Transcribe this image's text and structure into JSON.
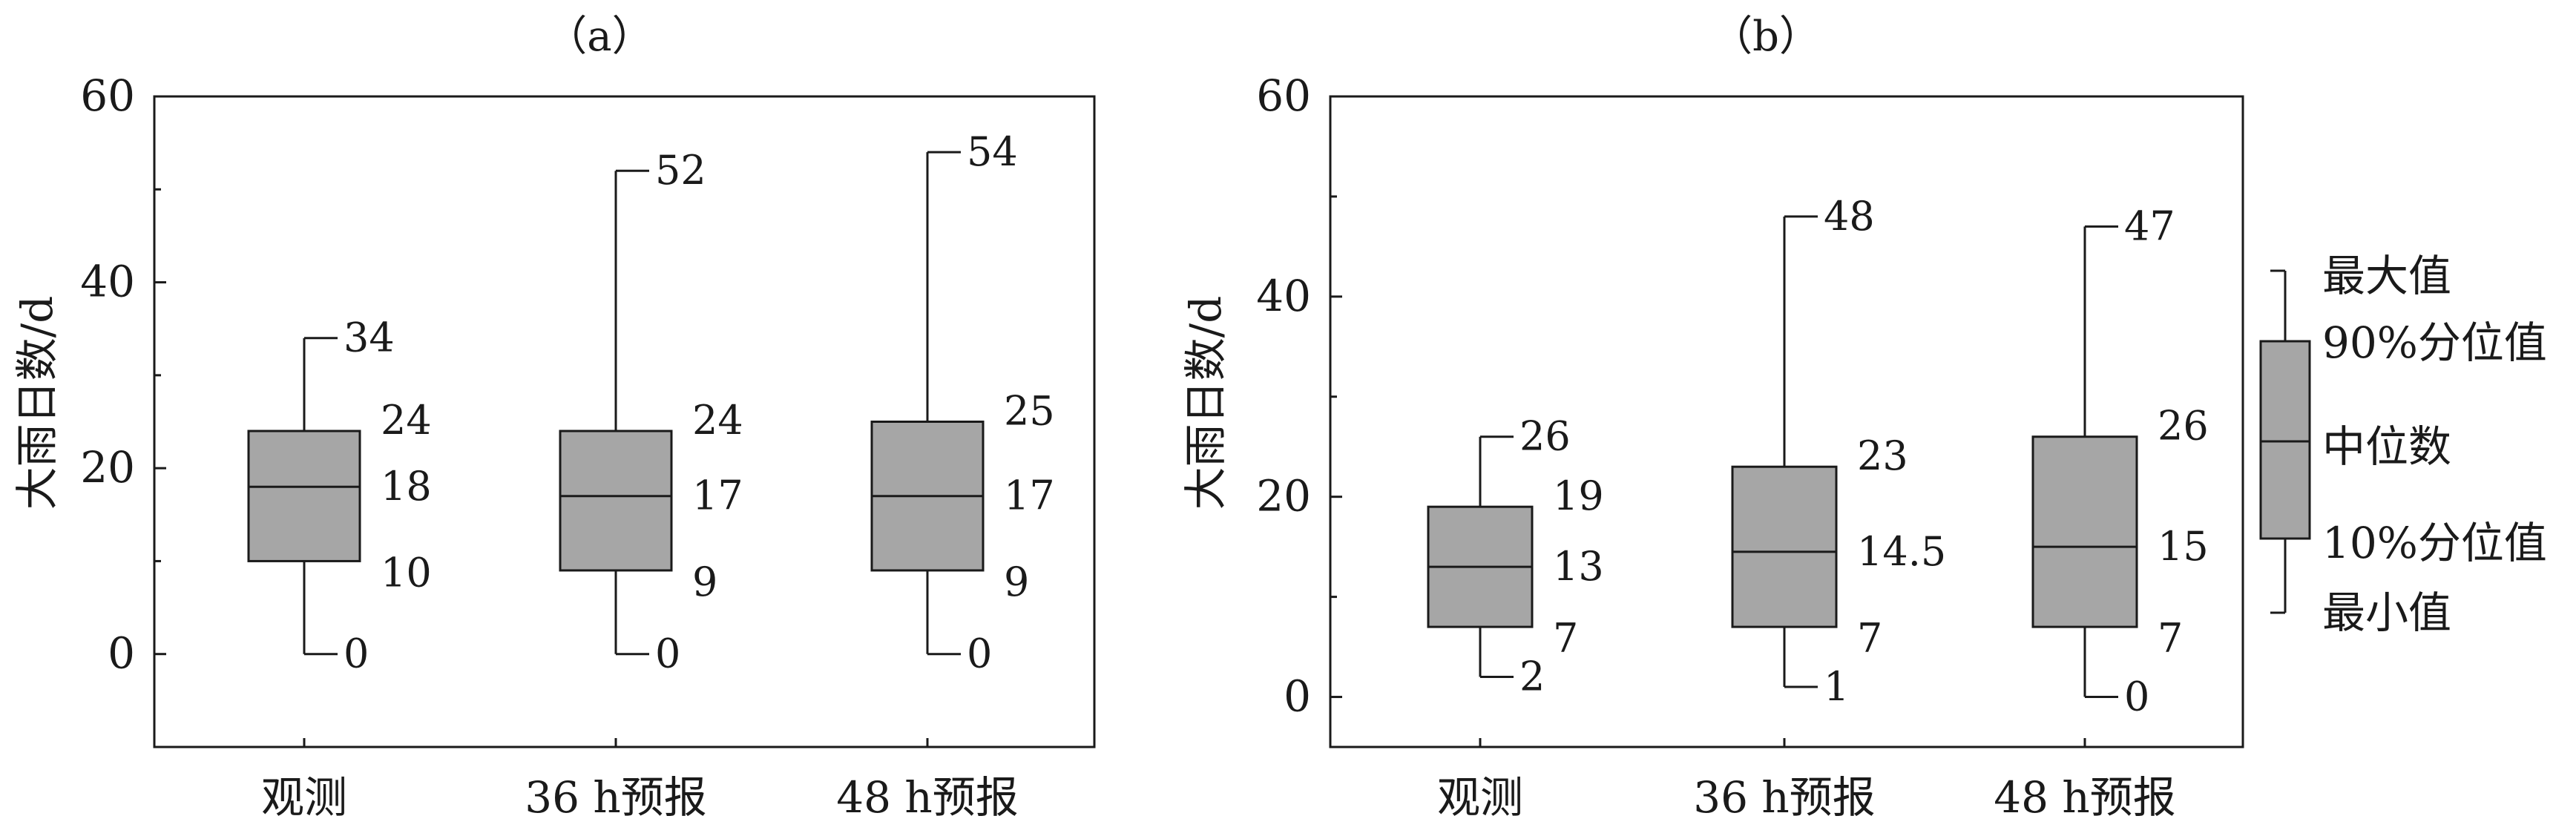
{
  "chart_data": [
    {
      "type": "box",
      "panel_label": "（a）",
      "ylabel": "大雨日数/d",
      "ylim": [
        -10,
        60
      ],
      "yticks": [
        "0",
        "20",
        "40",
        "60"
      ],
      "categories": [
        "观测",
        "36 h预报",
        "48 h预报"
      ],
      "boxes": [
        {
          "max": 34,
          "p90": 24,
          "median": 18,
          "p10": 10,
          "min": 0,
          "labels": {
            "max": "34",
            "p90": "24",
            "median": "18",
            "p10": "10",
            "min": "0"
          }
        },
        {
          "max": 52,
          "p90": 24,
          "median": 17,
          "p10": 9,
          "min": 0,
          "labels": {
            "max": "52",
            "p90": "24",
            "median": "17",
            "p10": "9",
            "min": "0"
          }
        },
        {
          "max": 54,
          "p90": 25,
          "median": 17,
          "p10": 9,
          "min": 0,
          "labels": {
            "max": "54",
            "p90": "25",
            "median": "17",
            "p10": "9",
            "min": "0"
          }
        }
      ]
    },
    {
      "type": "box",
      "panel_label": "（b）",
      "ylabel": "大雨日数/d",
      "ylim": [
        -5,
        60
      ],
      "yticks": [
        "0",
        "20",
        "40",
        "60"
      ],
      "categories": [
        "观测",
        "36 h预报",
        "48 h预报"
      ],
      "boxes": [
        {
          "max": 26,
          "p90": 19,
          "median": 13,
          "p10": 7,
          "min": 2,
          "labels": {
            "max": "26",
            "p90": "19",
            "median": "13",
            "p10": "7",
            "min": "2"
          }
        },
        {
          "max": 48,
          "p90": 23,
          "median": 14.5,
          "p10": 7,
          "min": 1,
          "labels": {
            "max": "48",
            "p90": "23",
            "median": "14.5",
            "p10": "7",
            "min": "1"
          }
        },
        {
          "max": 47,
          "p90": 26,
          "median": 15,
          "p10": 7,
          "min": 0,
          "labels": {
            "max": "47",
            "p90": "26",
            "median": "15",
            "p10": "7",
            "min": "0"
          }
        }
      ]
    }
  ],
  "legend": {
    "max": "最大值",
    "p90": "90%分位值",
    "median": "中位数",
    "p10": "10%分位值",
    "min": "最小值"
  },
  "colors": {
    "box_fill": "#a6a6a6",
    "line": "#1a1a1a"
  }
}
